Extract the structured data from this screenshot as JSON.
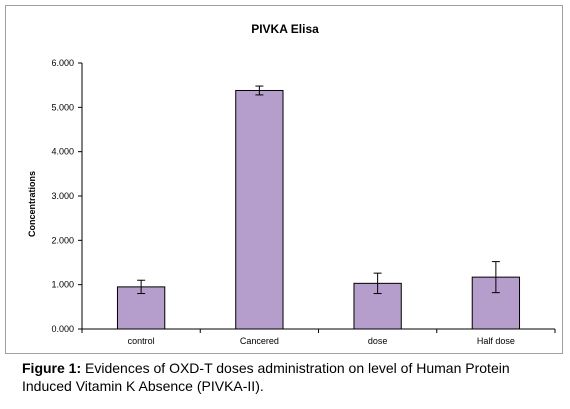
{
  "chart_data": {
    "type": "bar",
    "title": "PIVKA Elisa",
    "xlabel": "",
    "ylabel": "Concentrations",
    "categories": [
      "control",
      "Cancered",
      "dose",
      "Half dose"
    ],
    "series": [
      {
        "values": [
          0.95,
          5.38,
          1.03,
          1.17
        ],
        "error": [
          0.15,
          0.1,
          0.23,
          0.35
        ]
      }
    ],
    "ylim": [
      0,
      6
    ],
    "yticks": [
      "0.000",
      "1.000",
      "2.000",
      "3.000",
      "4.000",
      "5.000",
      "6.000"
    ],
    "grid": false,
    "legend": "none",
    "bar_color": "#b59ecc",
    "bar_edge_color": "#000000"
  },
  "caption": {
    "label": "Figure 1:",
    "text": " Evidences of OXD-T doses administration on level of Human Protein Induced Vitamin K Absence (PIVKA-II)."
  }
}
